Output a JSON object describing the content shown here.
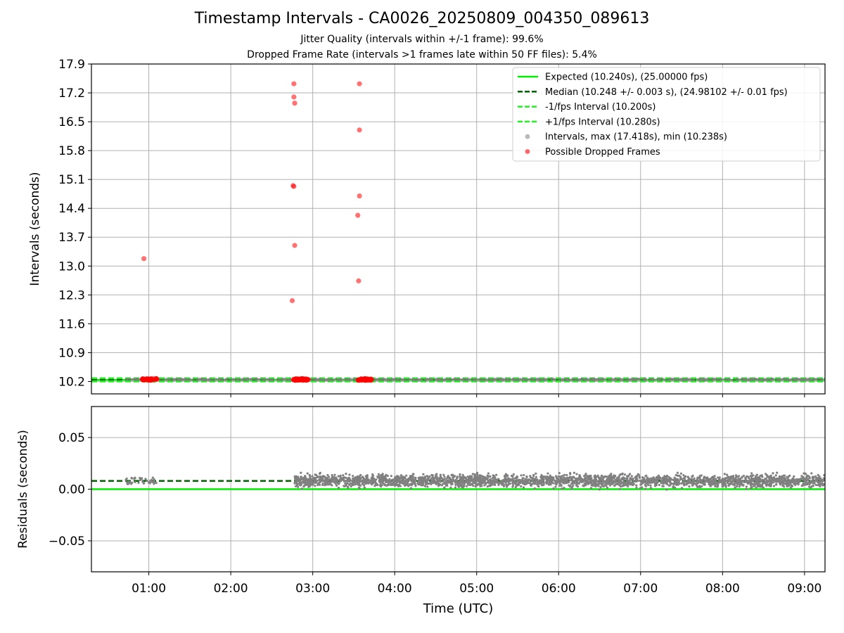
{
  "title": "Timestamp Intervals - CA0026_20250809_004350_089613",
  "subtitle_1": "Jitter Quality (intervals within +/-1 frame): 99.6%",
  "subtitle_2": "Dropped Frame Rate (intervals >1 frames late within 50 FF files): 5.4%",
  "colors": {
    "expected": "#00ee00",
    "median": "#006400",
    "fps_band": "#22ee22",
    "intervals": "#808080",
    "dropped": "#ff0000",
    "grid": "#b0b0b0"
  },
  "chart_data": [
    {
      "type": "scatter",
      "name": "intervals-panel",
      "xlabel": "",
      "ylabel": "Intervals (seconds)",
      "xlim": [
        0.3,
        9.25
      ],
      "ylim": [
        9.9,
        17.9
      ],
      "yticks": [
        10.2,
        10.9,
        11.6,
        12.3,
        13.0,
        13.7,
        14.4,
        15.1,
        15.8,
        16.5,
        17.2,
        17.9
      ],
      "ytick_labels": [
        "10.2",
        "10.9",
        "11.6",
        "12.3",
        "13.0",
        "13.7",
        "14.4",
        "15.1",
        "15.8",
        "16.5",
        "17.2",
        "17.9"
      ],
      "xticks": [
        1,
        2,
        3,
        4,
        5,
        6,
        7,
        8,
        9
      ],
      "grid": true,
      "legend_position": "top-right",
      "lines": [
        {
          "name": "Expected (10.240s), (25.00000 fps)",
          "y": 10.24,
          "style": "solid",
          "color": "#00ee00"
        },
        {
          "name": "Median (10.248 +/- 0.003 s), (24.98102 +/- 0.01 fps)",
          "y": 10.248,
          "style": "dashed",
          "color": "#006400"
        },
        {
          "name": "-1/fps Interval (10.200s)",
          "y": 10.2,
          "style": "dashed",
          "color": "#22ee22"
        },
        {
          "name": "+1/fps Interval (10.280s)",
          "y": 10.28,
          "style": "dashed",
          "color": "#22ee22"
        }
      ],
      "series": [
        {
          "name": "Intervals, max (17.418s), min (10.238s)",
          "color": "#808080",
          "max": 17.418,
          "min": 10.238,
          "baseline": 10.248,
          "x_range": [
            0.72,
            9.25
          ]
        },
        {
          "name": "Possible Dropped Frames",
          "color": "#ff0000",
          "points": [
            {
              "x": 0.94,
              "y": 13.18
            },
            {
              "x": 2.75,
              "y": 12.16
            },
            {
              "x": 2.76,
              "y": 14.95
            },
            {
              "x": 2.77,
              "y": 14.93
            },
            {
              "x": 2.77,
              "y": 17.1
            },
            {
              "x": 2.77,
              "y": 17.42
            },
            {
              "x": 2.78,
              "y": 16.95
            },
            {
              "x": 2.78,
              "y": 13.5
            },
            {
              "x": 3.55,
              "y": 14.23
            },
            {
              "x": 3.56,
              "y": 12.64
            },
            {
              "x": 3.57,
              "y": 16.3
            },
            {
              "x": 3.57,
              "y": 17.42
            },
            {
              "x": 3.57,
              "y": 14.7
            }
          ],
          "clusters_near_baseline": [
            [
              0.92,
              1.1
            ],
            [
              2.75,
              2.95
            ],
            [
              3.55,
              3.72
            ]
          ]
        }
      ]
    },
    {
      "type": "scatter",
      "name": "residuals-panel",
      "xlabel": "Time (UTC)",
      "ylabel": "Residuals (seconds)",
      "xlim": [
        0.3,
        9.25
      ],
      "ylim": [
        -0.08,
        0.08
      ],
      "yticks": [
        -0.05,
        0.0,
        0.05
      ],
      "ytick_labels": [
        "−0.05",
        "0.00",
        "0.05"
      ],
      "xticks": [
        1,
        2,
        3,
        4,
        5,
        6,
        7,
        8,
        9
      ],
      "xtick_labels": [
        "01:00",
        "02:00",
        "03:00",
        "04:00",
        "05:00",
        "06:00",
        "07:00",
        "08:00",
        "09:00"
      ],
      "grid": true,
      "lines": [
        {
          "name": "expected",
          "y": 0.0,
          "style": "solid",
          "color": "#00ee00"
        },
        {
          "name": "median",
          "y": 0.008,
          "style": "dashed",
          "color": "#006400"
        }
      ],
      "series": [
        {
          "name": "residuals",
          "color": "#808080",
          "center": 0.008,
          "spread": 0.004,
          "x_range": [
            0.72,
            9.25
          ],
          "gap": [
            1.1,
            2.78
          ]
        }
      ]
    }
  ]
}
